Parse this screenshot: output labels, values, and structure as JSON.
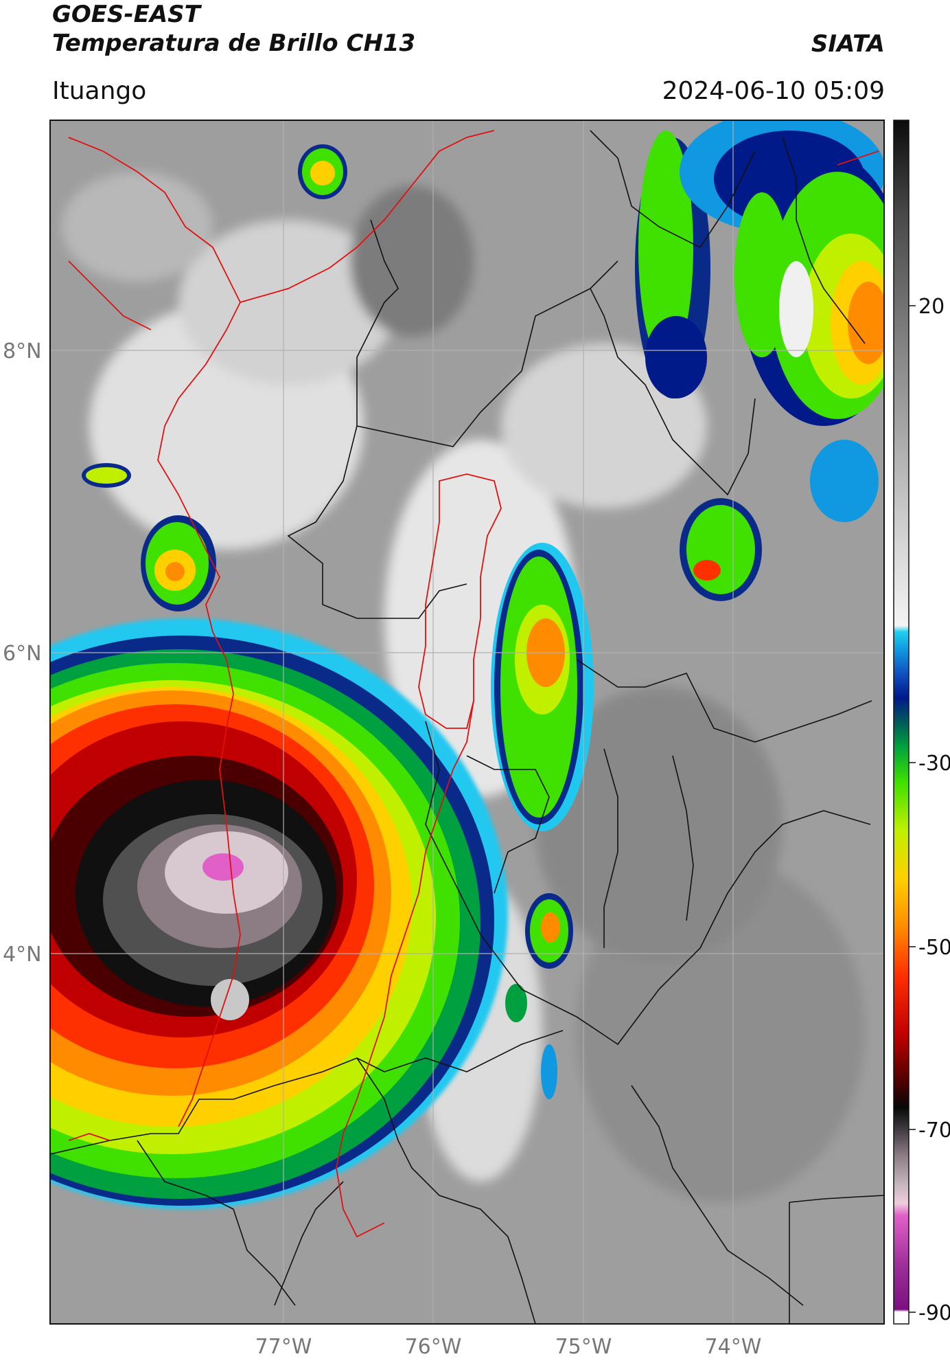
{
  "header": {
    "satellite": "GOES-EAST",
    "product": "Temperatura de Brillo CH13",
    "brand": "SIATA",
    "location": "Ituango",
    "datetime": "2024-06-10 05:09"
  },
  "map": {
    "lon_labels": [
      "77°W",
      "76°W",
      "75°W",
      "74°W"
    ],
    "lat_labels": [
      "8°N",
      "6°N",
      "4°N"
    ]
  },
  "colorbar": {
    "ticks": [
      "20",
      "-30",
      "-50",
      "-70",
      "-90"
    ]
  },
  "colors": {
    "grid": "#b0b0b0",
    "admin_border": "#111111",
    "country_border": "#e01010"
  }
}
